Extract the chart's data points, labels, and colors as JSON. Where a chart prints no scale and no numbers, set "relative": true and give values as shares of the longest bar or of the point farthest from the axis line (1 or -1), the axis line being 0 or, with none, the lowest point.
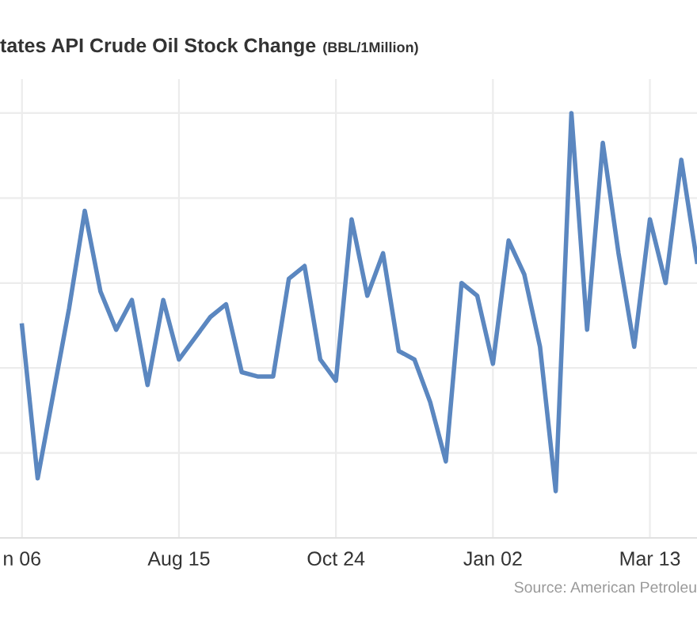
{
  "chart_data": {
    "type": "line",
    "title": "tates API Crude Oil Stock Change",
    "subtitle": "(BBL/1Million)",
    "relative": true,
    "grid": true,
    "legend": false,
    "marker": "none",
    "line_style": "solid",
    "categories": [
      "n 06",
      null,
      null,
      null,
      null,
      null,
      null,
      null,
      null,
      null,
      "Aug 15",
      null,
      null,
      null,
      null,
      null,
      null,
      null,
      null,
      null,
      "Oct 24",
      null,
      null,
      null,
      null,
      null,
      null,
      null,
      null,
      null,
      "Jan 02",
      null,
      null,
      null,
      null,
      null,
      null,
      null,
      null,
      null,
      "Mar 13",
      null,
      null,
      null
    ],
    "series": [
      {
        "color": "#5b87c0",
        "values": [
          0.5,
          0.14,
          0.34,
          0.54,
          0.77,
          0.58,
          0.49,
          0.56,
          0.36,
          0.56,
          0.42,
          0.47,
          0.52,
          0.55,
          0.39,
          0.38,
          0.38,
          0.61,
          0.64,
          0.42,
          0.37,
          0.75,
          0.57,
          0.67,
          0.44,
          0.42,
          0.32,
          0.18,
          0.6,
          0.57,
          0.41,
          0.7,
          0.62,
          0.45,
          0.11,
          1.0,
          0.49,
          0.93,
          0.67,
          0.45,
          0.75,
          0.6,
          0.89,
          0.65
        ]
      }
    ],
    "annotations": [
      "Source: American Petroleu"
    ]
  }
}
